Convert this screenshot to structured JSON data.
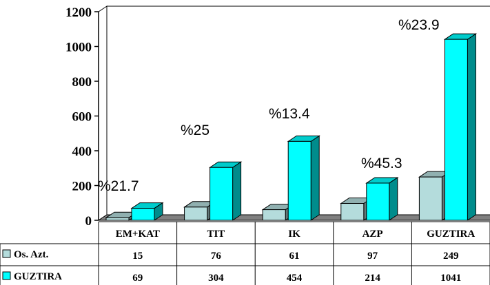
{
  "chart_data": {
    "type": "bar",
    "categories": [
      "EM+KAT",
      "TIT",
      "IK",
      "AZP",
      "GUZTIRA"
    ],
    "series": [
      {
        "name": "Os. Azt.",
        "values": [
          15,
          76,
          61,
          97,
          249
        ],
        "color": "#b4dcdc"
      },
      {
        "name": "GUZTIRA",
        "values": [
          69,
          304,
          454,
          214,
          1041
        ],
        "color": "#00ffff"
      }
    ],
    "annotations": [
      "%21.7",
      "%25",
      "%13.4",
      "%45.3",
      "%23.9"
    ],
    "yticks": [
      0,
      200,
      400,
      600,
      800,
      1000,
      1200
    ],
    "ylim": [
      0,
      1200
    ],
    "grid": false,
    "legend": "data-table"
  }
}
